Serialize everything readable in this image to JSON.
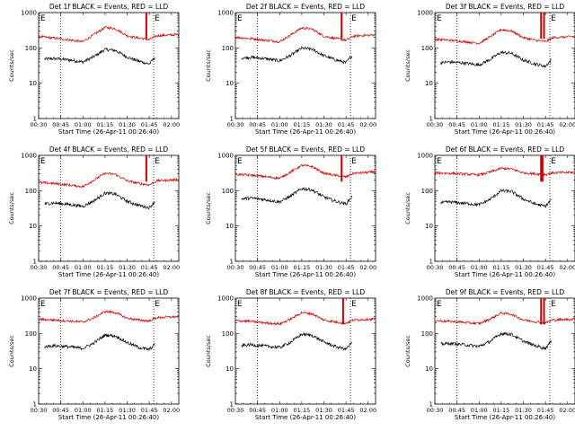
{
  "panel_count": 9,
  "chart_data": [
    {
      "type": "line",
      "title": "Det 1f BLACK = Events, RED = LLD",
      "xlabel": "Start Time (26-Apr-11 00:26:40)",
      "ylabel": "Counts/sec",
      "y_scale": "log",
      "ylim": [
        1,
        1000
      ],
      "xlim": [
        "00:30",
        "02:05"
      ],
      "x_ticks": [
        "00:30",
        "00:45",
        "01:00",
        "01:15",
        "01:30",
        "01:45",
        "02:00"
      ],
      "y_ticks": [
        "1",
        "10",
        "100",
        "1000"
      ],
      "markers": [
        "E",
        "E"
      ],
      "vlines": [
        "00:45",
        "01:48"
      ],
      "series": [
        {
          "name": "Events",
          "color": "#000000",
          "x": [
            "00:34",
            "00:40",
            "00:50",
            "01:00",
            "01:07",
            "01:15",
            "01:22",
            "01:30",
            "01:38",
            "01:45",
            "01:49"
          ],
          "y": [
            48,
            50,
            46,
            40,
            55,
            90,
            85,
            55,
            42,
            35,
            55
          ]
        },
        {
          "name": "LLD",
          "color": "#cc0000",
          "x": [
            "00:30",
            "00:40",
            "00:50",
            "01:00",
            "01:07",
            "01:15",
            "01:22",
            "01:30",
            "01:38",
            "01:45",
            "01:50",
            "02:05"
          ],
          "y": [
            210,
            190,
            170,
            150,
            230,
            380,
            350,
            220,
            190,
            170,
            220,
            240
          ],
          "spikes": [
            {
              "x": "01:43",
              "y": 1000
            }
          ]
        }
      ]
    },
    {
      "type": "line",
      "title": "Det 2f BLACK = Events, RED = LLD",
      "xlabel": "Start Time (26-Apr-11 00:26:40)",
      "ylabel": "Counts/sec",
      "y_scale": "log",
      "ylim": [
        1,
        1000
      ],
      "xlim": [
        "00:30",
        "02:05"
      ],
      "x_ticks": [
        "00:30",
        "00:45",
        "01:00",
        "01:15",
        "01:30",
        "01:45",
        "02:00"
      ],
      "y_ticks": [
        "1",
        "10",
        "100",
        "1000"
      ],
      "markers": [
        "E",
        "E"
      ],
      "vlines": [
        "00:45",
        "01:48"
      ],
      "series": [
        {
          "name": "Events",
          "color": "#000000",
          "x": [
            "00:34",
            "00:40",
            "00:50",
            "01:00",
            "01:07",
            "01:15",
            "01:22",
            "01:30",
            "01:38",
            "01:45",
            "01:49"
          ],
          "y": [
            52,
            54,
            50,
            43,
            60,
            98,
            92,
            60,
            46,
            38,
            60
          ]
        },
        {
          "name": "LLD",
          "color": "#cc0000",
          "x": [
            "00:30",
            "00:40",
            "00:50",
            "01:00",
            "01:07",
            "01:15",
            "01:22",
            "01:30",
            "01:38",
            "01:45",
            "01:50",
            "02:05"
          ],
          "y": [
            200,
            185,
            165,
            150,
            225,
            370,
            340,
            215,
            185,
            165,
            215,
            235
          ],
          "spikes": [
            {
              "x": "01:42",
              "y": 1000
            }
          ]
        }
      ]
    },
    {
      "type": "line",
      "title": "Det 3f BLACK = Events, RED = LLD",
      "xlabel": "Start Time (26-Apr-11 00:26:40)",
      "ylabel": "Counts/sec",
      "y_scale": "log",
      "ylim": [
        1,
        1000
      ],
      "xlim": [
        "00:30",
        "02:05"
      ],
      "x_ticks": [
        "00:30",
        "00:45",
        "01:00",
        "01:15",
        "01:30",
        "01:45",
        "02:00"
      ],
      "y_ticks": [
        "1",
        "10",
        "100",
        "1000"
      ],
      "markers": [
        "E",
        "E"
      ],
      "vlines": [
        "00:45",
        "01:48"
      ],
      "series": [
        {
          "name": "Events",
          "color": "#000000",
          "x": [
            "00:34",
            "00:40",
            "00:50",
            "01:00",
            "01:07",
            "01:15",
            "01:22",
            "01:30",
            "01:38",
            "01:45",
            "01:49"
          ],
          "y": [
            38,
            40,
            37,
            33,
            46,
            75,
            70,
            45,
            35,
            30,
            46
          ]
        },
        {
          "name": "LLD",
          "color": "#cc0000",
          "x": [
            "00:30",
            "00:40",
            "00:50",
            "01:00",
            "01:07",
            "01:15",
            "01:22",
            "01:30",
            "01:38",
            "01:45",
            "01:50",
            "02:05"
          ],
          "y": [
            175,
            165,
            150,
            135,
            200,
            330,
            300,
            195,
            165,
            150,
            195,
            210
          ],
          "spikes": [
            {
              "x": "01:42",
              "y": 1000
            },
            {
              "x": "01:44",
              "y": 1000
            }
          ]
        }
      ]
    },
    {
      "type": "line",
      "title": "Det 4f BLACK = Events, RED = LLD",
      "xlabel": "Start Time (26-Apr-11 00:26:40)",
      "ylabel": "Counts/sec",
      "y_scale": "log",
      "ylim": [
        1,
        1000
      ],
      "xlim": [
        "00:30",
        "02:05"
      ],
      "x_ticks": [
        "00:30",
        "00:45",
        "01:00",
        "01:15",
        "01:30",
        "01:45",
        "02:00"
      ],
      "y_ticks": [
        "1",
        "10",
        "100",
        "1000"
      ],
      "markers": [
        "E",
        "E"
      ],
      "vlines": [
        "00:45",
        "01:48"
      ],
      "series": [
        {
          "name": "Events",
          "color": "#000000",
          "x": [
            "00:34",
            "00:40",
            "00:50",
            "01:00",
            "01:07",
            "01:15",
            "01:22",
            "01:30",
            "01:38",
            "01:45",
            "01:49"
          ],
          "y": [
            42,
            45,
            41,
            36,
            50,
            85,
            80,
            50,
            38,
            33,
            50
          ]
        },
        {
          "name": "LLD",
          "color": "#cc0000",
          "x": [
            "00:30",
            "00:40",
            "00:50",
            "01:00",
            "01:07",
            "01:15",
            "01:22",
            "01:30",
            "01:38",
            "01:45",
            "01:50",
            "02:05"
          ],
          "y": [
            170,
            160,
            145,
            130,
            195,
            310,
            290,
            190,
            160,
            145,
            190,
            205
          ],
          "spikes": [
            {
              "x": "01:43",
              "y": 1000
            }
          ]
        }
      ]
    },
    {
      "type": "line",
      "title": "Det 5f BLACK = Events, RED = LLD",
      "xlabel": "Start Time (26-Apr-11 00:26:40)",
      "ylabel": "Counts/sec",
      "y_scale": "log",
      "ylim": [
        1,
        1000
      ],
      "xlim": [
        "00:30",
        "02:05"
      ],
      "x_ticks": [
        "00:30",
        "00:45",
        "01:00",
        "01:15",
        "01:30",
        "01:45",
        "02:00"
      ],
      "y_ticks": [
        "1",
        "10",
        "100",
        "1000"
      ],
      "markers": [
        "E",
        "E"
      ],
      "vlines": [
        "00:45",
        "01:48"
      ],
      "series": [
        {
          "name": "Events",
          "color": "#000000",
          "x": [
            "00:34",
            "00:40",
            "00:50",
            "01:00",
            "01:07",
            "01:15",
            "01:22",
            "01:30",
            "01:38",
            "01:45",
            "01:49"
          ],
          "y": [
            58,
            62,
            56,
            48,
            68,
            115,
            105,
            66,
            50,
            42,
            68
          ]
        },
        {
          "name": "LLD",
          "color": "#cc0000",
          "x": [
            "00:30",
            "00:40",
            "00:50",
            "01:00",
            "01:07",
            "01:15",
            "01:22",
            "01:30",
            "01:38",
            "01:45",
            "01:50",
            "02:05"
          ],
          "y": [
            290,
            275,
            250,
            225,
            330,
            520,
            480,
            310,
            270,
            245,
            310,
            340
          ],
          "spikes": [
            {
              "x": "01:42",
              "y": 1000
            }
          ]
        }
      ]
    },
    {
      "type": "line",
      "title": "Det 6f BLACK = Events, RED = LLD",
      "xlabel": "Start Time (26-Apr-11 00:26:40)",
      "ylabel": "Counts/sec",
      "y_scale": "log",
      "ylim": [
        1,
        1000
      ],
      "xlim": [
        "00:30",
        "02:05"
      ],
      "x_ticks": [
        "00:30",
        "00:45",
        "01:00",
        "01:15",
        "01:30",
        "01:45",
        "02:00"
      ],
      "y_ticks": [
        "1",
        "10",
        "100",
        "1000"
      ],
      "markers": [
        "E",
        "E"
      ],
      "vlines": [
        "00:45",
        "01:48"
      ],
      "series": [
        {
          "name": "Events",
          "color": "#000000",
          "x": [
            "00:34",
            "00:40",
            "00:50",
            "01:00",
            "01:07",
            "01:15",
            "01:22",
            "01:30",
            "01:38",
            "01:45",
            "01:49"
          ],
          "y": [
            45,
            48,
            44,
            40,
            55,
            100,
            95,
            58,
            42,
            36,
            56
          ]
        },
        {
          "name": "LLD",
          "color": "#cc0000",
          "x": [
            "00:30",
            "00:40",
            "00:50",
            "01:00",
            "01:07",
            "01:15",
            "01:22",
            "01:30",
            "01:38",
            "01:45",
            "01:50",
            "02:05"
          ],
          "y": [
            320,
            310,
            295,
            280,
            330,
            430,
            410,
            320,
            300,
            285,
            320,
            330
          ],
          "spikes": [
            {
              "x": "01:42",
              "y": 1000
            },
            {
              "x": "01:43",
              "y": 1000
            }
          ]
        }
      ]
    },
    {
      "type": "line",
      "title": "Det 7f BLACK = Events, RED = LLD",
      "xlabel": "Start Time (26-Apr-11 00:26:40)",
      "ylabel": "Counts/sec",
      "y_scale": "log",
      "ylim": [
        1,
        1000
      ],
      "xlim": [
        "00:30",
        "02:05"
      ],
      "x_ticks": [
        "00:30",
        "00:45",
        "01:00",
        "01:15",
        "01:30",
        "01:45",
        "02:00"
      ],
      "y_ticks": [
        "1",
        "10",
        "100",
        "1000"
      ],
      "markers": [
        "E",
        "E"
      ],
      "vlines": [
        "00:45",
        "01:48"
      ],
      "series": [
        {
          "name": "Events",
          "color": "#000000",
          "x": [
            "00:34",
            "00:40",
            "00:50",
            "01:00",
            "01:07",
            "01:15",
            "01:22",
            "01:30",
            "01:38",
            "01:45",
            "01:49"
          ],
          "y": [
            42,
            45,
            42,
            38,
            52,
            90,
            85,
            55,
            40,
            35,
            50
          ]
        },
        {
          "name": "LLD",
          "color": "#cc0000",
          "x": [
            "00:30",
            "00:40",
            "00:50",
            "01:00",
            "01:07",
            "01:15",
            "01:22",
            "01:30",
            "01:38",
            "01:45",
            "01:50",
            "02:05"
          ],
          "y": [
            250,
            240,
            225,
            210,
            270,
            420,
            390,
            270,
            240,
            225,
            280,
            300
          ],
          "spikes": []
        }
      ]
    },
    {
      "type": "line",
      "title": "Det 8f BLACK = Events, RED = LLD",
      "xlabel": "Start Time (26-Apr-11 00:26:40)",
      "ylabel": "Counts/sec",
      "y_scale": "log",
      "ylim": [
        1,
        1000
      ],
      "xlim": [
        "00:30",
        "02:05"
      ],
      "x_ticks": [
        "00:30",
        "00:45",
        "01:00",
        "01:15",
        "01:30",
        "01:45",
        "02:00"
      ],
      "y_ticks": [
        "1",
        "10",
        "100",
        "1000"
      ],
      "markers": [
        "E",
        "E"
      ],
      "vlines": [
        "00:45",
        "01:48"
      ],
      "series": [
        {
          "name": "Events",
          "color": "#000000",
          "x": [
            "00:34",
            "00:40",
            "00:50",
            "01:00",
            "01:07",
            "01:15",
            "01:22",
            "01:30",
            "01:38",
            "01:45",
            "01:49"
          ],
          "y": [
            45,
            48,
            44,
            40,
            55,
            95,
            88,
            57,
            42,
            36,
            55
          ]
        },
        {
          "name": "LLD",
          "color": "#cc0000",
          "x": [
            "00:30",
            "00:40",
            "00:50",
            "01:00",
            "01:07",
            "01:15",
            "01:22",
            "01:30",
            "01:38",
            "01:45",
            "01:50",
            "02:05"
          ],
          "y": [
            230,
            220,
            200,
            185,
            250,
            390,
            360,
            240,
            210,
            195,
            240,
            260
          ],
          "spikes": [
            {
              "x": "01:43",
              "y": 1000
            }
          ]
        }
      ]
    },
    {
      "type": "line",
      "title": "Det 9f BLACK = Events, RED = LLD",
      "xlabel": "Start Time (26-Apr-11 00:26:40)",
      "ylabel": "Counts/sec",
      "y_scale": "log",
      "ylim": [
        1,
        1000
      ],
      "xlim": [
        "00:30",
        "02:05"
      ],
      "x_ticks": [
        "00:30",
        "00:45",
        "01:00",
        "01:15",
        "01:30",
        "01:45",
        "02:00"
      ],
      "y_ticks": [
        "1",
        "10",
        "100",
        "1000"
      ],
      "markers": [
        "E",
        "E"
      ],
      "vlines": [
        "00:45",
        "01:48"
      ],
      "series": [
        {
          "name": "Events",
          "color": "#000000",
          "x": [
            "00:34",
            "00:40",
            "00:50",
            "01:00",
            "01:07",
            "01:15",
            "01:22",
            "01:30",
            "01:38",
            "01:45",
            "01:49"
          ],
          "y": [
            50,
            52,
            48,
            43,
            58,
            100,
            95,
            60,
            45,
            38,
            60
          ]
        },
        {
          "name": "LLD",
          "color": "#cc0000",
          "x": [
            "00:30",
            "00:40",
            "00:50",
            "01:00",
            "01:07",
            "01:15",
            "01:22",
            "01:30",
            "01:38",
            "01:45",
            "01:50",
            "02:05"
          ],
          "y": [
            230,
            220,
            205,
            190,
            250,
            380,
            350,
            240,
            215,
            200,
            240,
            255
          ],
          "spikes": [
            {
              "x": "01:42",
              "y": 1000
            },
            {
              "x": "01:44",
              "y": 1000
            }
          ]
        }
      ]
    }
  ]
}
